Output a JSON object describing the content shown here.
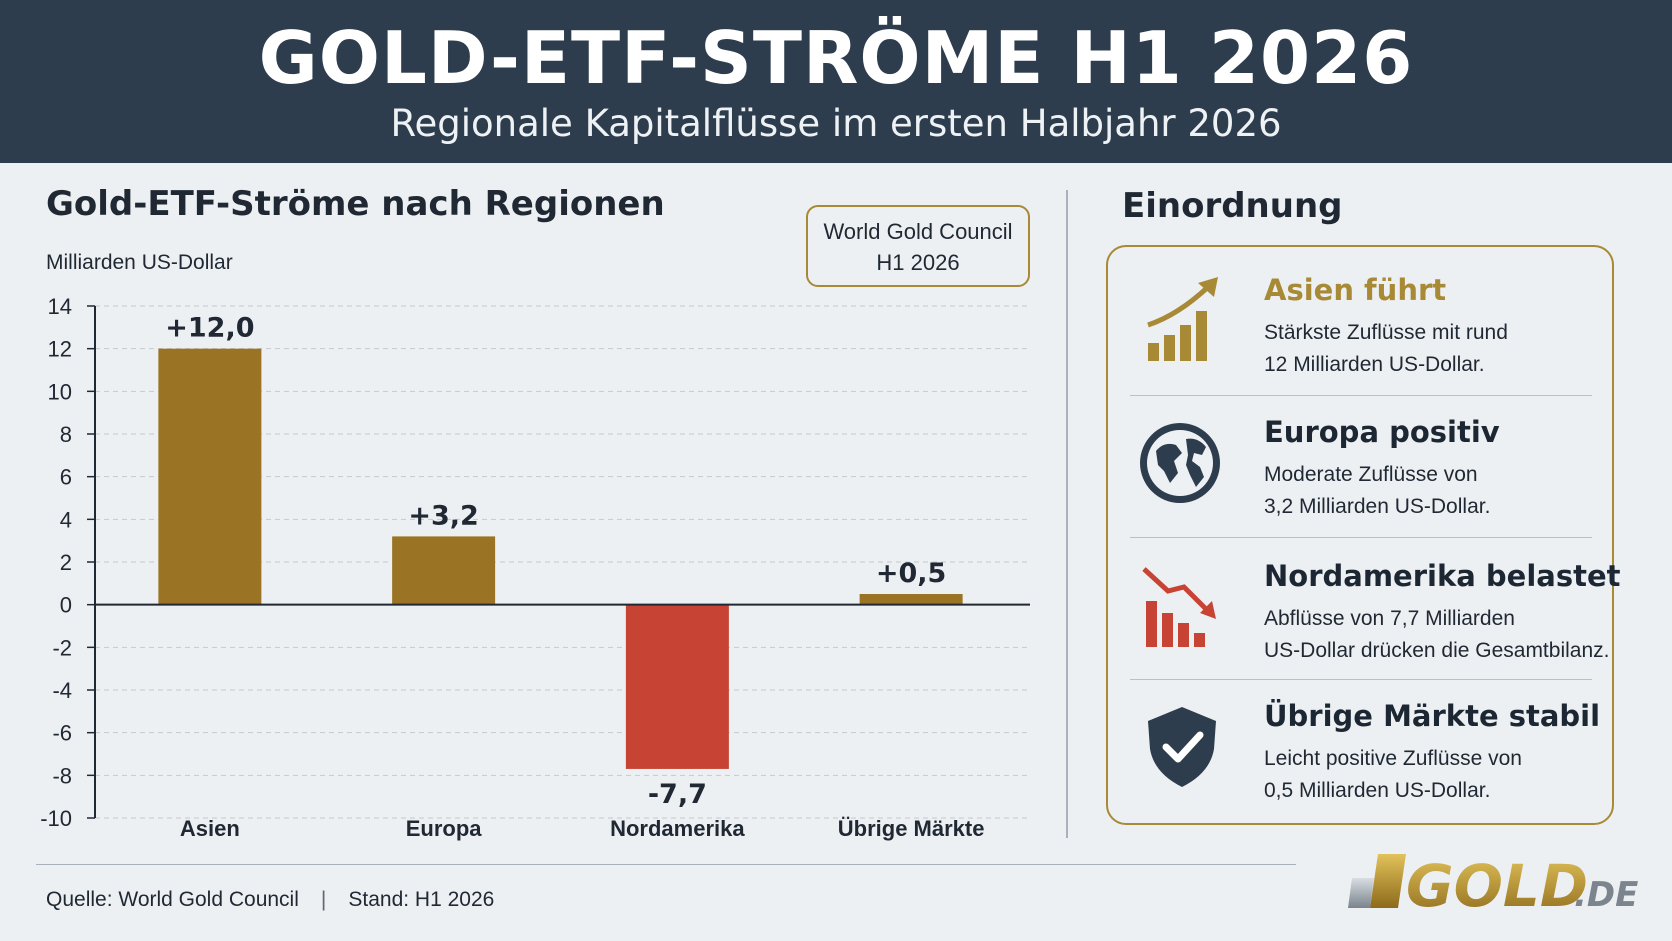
{
  "header": {
    "title": "GOLD-ETF-STRÖME H1 2026",
    "subtitle": "Regionale Kapitalflüsse im ersten Halbjahr 2026"
  },
  "chart_panel": {
    "title": "Gold-ETF-Ströme nach Regionen",
    "unit": "Milliarden US-Dollar",
    "source_box": [
      "World Gold Council",
      "H1 2026"
    ]
  },
  "chart_data": {
    "type": "bar",
    "title": "Gold-ETF-Ströme nach Regionen",
    "ylabel": "Milliarden US-Dollar",
    "categories": [
      "Asien",
      "Europa",
      "Nordamerika",
      "Übrige Märkte"
    ],
    "values": [
      12.0,
      3.2,
      -7.7,
      0.5
    ],
    "value_labels": [
      "+12,0",
      "+3,2",
      "-7,7",
      "+0,5"
    ],
    "ylim": [
      -10,
      14
    ],
    "yticks": [
      "14",
      "12",
      "10",
      "8",
      "6",
      "4",
      "2",
      "0",
      "-2",
      "-4",
      "-6",
      "-8",
      "-10"
    ],
    "grid": true,
    "colors": {
      "positive": "#9a7424",
      "negative": "#c74334"
    }
  },
  "sidebar": {
    "title": "Einordnung",
    "items": [
      {
        "icon": "rising-chart-icon",
        "heading": "Asien führt",
        "line1": "Stärkste Zuflüsse mit rund",
        "line2": "12 Milliarden US-Dollar.",
        "color": "#a88935"
      },
      {
        "icon": "globe-icon",
        "heading": "Europa positiv",
        "line1": "Moderate Zuflüsse von",
        "line2": "3,2 Milliarden US-Dollar.",
        "color": "#2d3d4d"
      },
      {
        "icon": "falling-chart-icon",
        "heading": "Nordamerika belastet",
        "line1": "Abflüsse von 7,7 Milliarden",
        "line2": "US-Dollar drücken die Gesamtbilanz.",
        "color": "#2d3d4d"
      },
      {
        "icon": "shield-check-icon",
        "heading": "Übrige Märkte stabil",
        "line1": "Leicht positive Zuflüsse von",
        "line2": "0,5 Milliarden US-Dollar.",
        "color": "#2d3d4d"
      }
    ]
  },
  "footer": {
    "source": "Quelle: World Gold Council",
    "separator": "|",
    "date": "Stand: H1 2026"
  },
  "logo": {
    "main": "GOLD",
    "suffix": ".DE"
  }
}
